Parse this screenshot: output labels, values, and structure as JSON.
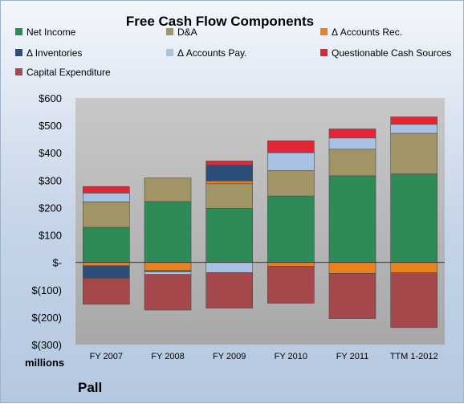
{
  "chart_data": {
    "type": "bar",
    "stacked": true,
    "title": "Free Cash Flow Components",
    "unit_label": "millions",
    "company": "Pall",
    "categories": [
      "FY 2007",
      "FY 2008",
      "FY 2009",
      "FY 2010",
      "FY 2011",
      "TTM 1-2012"
    ],
    "ylim": [
      -300,
      600
    ],
    "yticks": [
      -300,
      -200,
      -100,
      0,
      100,
      200,
      300,
      400,
      500,
      600
    ],
    "ytick_labels": [
      "$(300)",
      "$(200)",
      "$(100)",
      "$-",
      "$100",
      "$200",
      "$300",
      "$400",
      "$500",
      "$600"
    ],
    "grid": false,
    "legend_position": "top",
    "series": [
      {
        "name": "Net Income",
        "color": "#2e8b57",
        "values": [
          128,
          222,
          197,
          242,
          316,
          323
        ]
      },
      {
        "name": "D&A",
        "color": "#a19565",
        "values": [
          93,
          86,
          90,
          93,
          97,
          148
        ]
      },
      {
        "name": "Δ Accounts Rec.",
        "color": "#e8821c",
        "values": [
          -12,
          -30,
          10,
          -14,
          -40,
          -38
        ]
      },
      {
        "name": "Δ Inventories",
        "color": "#2c4e7a",
        "values": [
          -46,
          -4,
          58,
          0,
          0,
          0
        ]
      },
      {
        "name": "Δ Accounts Pay.",
        "color": "#a9c1e2",
        "values": [
          32,
          -10,
          -37,
          65,
          41,
          33
        ]
      },
      {
        "name": "Questionable Cash Sources",
        "color": "#e32636",
        "values": [
          24,
          0,
          15,
          44,
          33,
          27
        ]
      },
      {
        "name": "Capital Expenditure",
        "color": "#a5484c",
        "values": [
          -95,
          -130,
          -130,
          -135,
          -165,
          -200
        ]
      }
    ]
  }
}
